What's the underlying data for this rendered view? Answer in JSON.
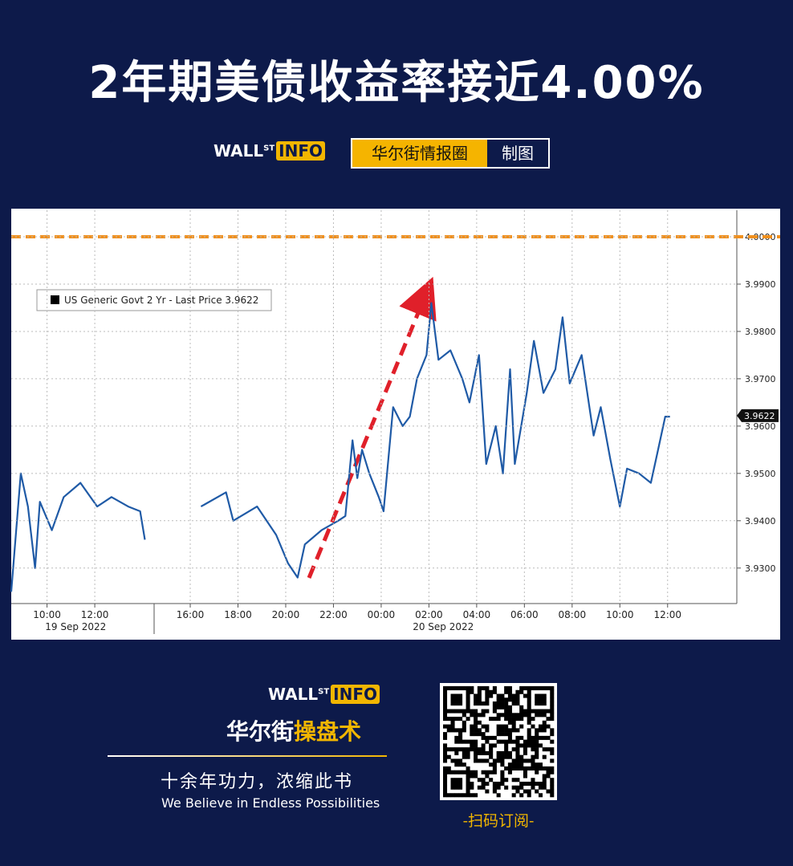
{
  "header": {
    "title": "2年期美债收益率接近4.00%",
    "logo_main": "WALL",
    "logo_sup": "ST",
    "logo_box": "INFO",
    "badge_left": "华尔街情报圈",
    "badge_right": "制图"
  },
  "chart_data": {
    "type": "line",
    "x": [
      8.5,
      8.9,
      9.2,
      9.5,
      9.7,
      10.2,
      10.7,
      11.4,
      12.1,
      12.7,
      13.4,
      13.9,
      14.1,
      15.0,
      16.45,
      17.5,
      17.8,
      18.8,
      19.6,
      20.1,
      20.5,
      20.8,
      21.5,
      22.2,
      22.5,
      22.8,
      23.0,
      23.2,
      23.5,
      23.9,
      24.1,
      24.5,
      24.9,
      25.2,
      25.5,
      25.9,
      26.1,
      26.4,
      26.9,
      27.4,
      27.7,
      28.1,
      28.4,
      28.8,
      29.1,
      29.4,
      29.6,
      30.1,
      30.4,
      30.8,
      31.3,
      31.6,
      31.9,
      32.4,
      32.9,
      33.2,
      33.6,
      34.0,
      34.3,
      34.8,
      35.3,
      35.6,
      35.9,
      36.1
    ],
    "series": [
      {
        "name": "US Generic Govt 2 Yr - Last Price 3.9622",
        "color": "#1f5aa6",
        "values": [
          3.925,
          3.95,
          3.943,
          3.93,
          3.944,
          3.938,
          3.945,
          3.948,
          3.943,
          3.945,
          3.943,
          3.942,
          3.936,
          null,
          3.943,
          3.946,
          3.94,
          3.943,
          3.937,
          3.931,
          3.928,
          3.935,
          3.938,
          3.94,
          3.941,
          3.957,
          3.949,
          3.955,
          3.95,
          3.945,
          3.942,
          3.964,
          3.96,
          3.962,
          3.97,
          3.975,
          3.986,
          3.974,
          3.976,
          3.97,
          3.965,
          3.975,
          3.952,
          3.96,
          3.95,
          3.972,
          3.952,
          3.967,
          3.978,
          3.967,
          3.972,
          3.983,
          3.969,
          3.975,
          3.958,
          3.964,
          3.953,
          3.943,
          3.951,
          3.95,
          3.948,
          3.955,
          3.962,
          3.962
        ]
      }
    ],
    "last_price": 3.9622,
    "threshold": {
      "value": 4.0,
      "color": "#f0901e"
    },
    "xlim": [
      8.5,
      38.9
    ],
    "xticks": [
      {
        "value": 10,
        "label": "10:00"
      },
      {
        "value": 12,
        "label": "12:00"
      },
      {
        "value": 16,
        "label": "16:00"
      },
      {
        "value": 18,
        "label": "18:00"
      },
      {
        "value": 20,
        "label": "20:00"
      },
      {
        "value": 22,
        "label": "22:00"
      },
      {
        "value": 24,
        "label": "00:00"
      },
      {
        "value": 26,
        "label": "02:00"
      },
      {
        "value": 28,
        "label": "04:00"
      },
      {
        "value": 30,
        "label": "06:00"
      },
      {
        "value": 32,
        "label": "08:00"
      },
      {
        "value": 34,
        "label": "10:00"
      },
      {
        "value": 36,
        "label": "12:00"
      }
    ],
    "xdates": [
      {
        "value": 11.2,
        "label": "19 Sep 2022"
      },
      {
        "value": 26.6,
        "label": "20 Sep 2022"
      }
    ],
    "ylim": [
      3.9225,
      4.0056
    ],
    "yticks": [
      {
        "value": 3.93,
        "label": "3.9300"
      },
      {
        "value": 3.94,
        "label": "3.9400"
      },
      {
        "value": 3.95,
        "label": "3.9500"
      },
      {
        "value": 3.96,
        "label": "3.9600"
      },
      {
        "value": 3.97,
        "label": "3.9700"
      },
      {
        "value": 3.98,
        "label": "3.9800"
      },
      {
        "value": 3.99,
        "label": "3.9900"
      },
      {
        "value": 4.0,
        "label": "4.0000"
      }
    ],
    "grid": true
  },
  "footer": {
    "logo_main": "WALL",
    "logo_sup": "ST",
    "logo_box": "INFO",
    "brand_a": "华尔街",
    "brand_b": "操盘术",
    "slogan_cn": "十余年功力，浓缩此书",
    "slogan_en": "We Believe in Endless Possibilities",
    "qr_caption": "-扫码订阅-"
  }
}
